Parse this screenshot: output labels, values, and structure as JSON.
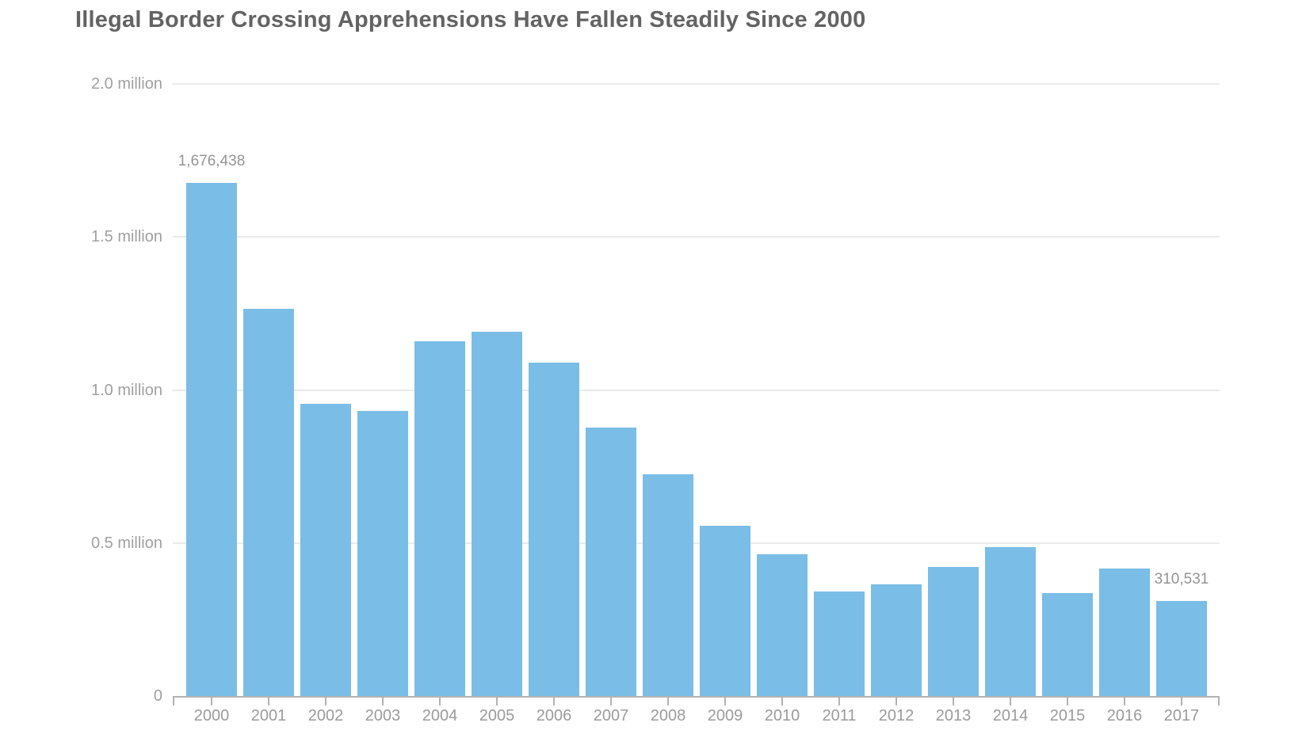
{
  "title": "Illegal Border Crossing Apprehensions Have Fallen Steadily Since 2000",
  "colors": {
    "background": "#ffffff",
    "bar": "#7abde6",
    "title_text": "#636363",
    "axis_tick_text": "#9b9b9b",
    "y_label_text": "#a0a0a0",
    "value_label_text": "#949494",
    "gridline": "#eaeaea",
    "axis_line": "#b3b3b3"
  },
  "chart_data": {
    "type": "bar",
    "title": "Illegal Border Crossing Apprehensions Have Fallen Steadily Since 2000",
    "xlabel": "",
    "ylabel": "",
    "ylim": [
      0,
      2000000
    ],
    "grid": "horizontal-gridlines-on",
    "legend": "none",
    "categories": [
      "2000",
      "2001",
      "2002",
      "2003",
      "2004",
      "2005",
      "2006",
      "2007",
      "2008",
      "2009",
      "2010",
      "2011",
      "2012",
      "2013",
      "2014",
      "2015",
      "2016",
      "2017"
    ],
    "values": [
      1676438,
      1266214,
      955310,
      931557,
      1160395,
      1189075,
      1089092,
      876704,
      723825,
      556041,
      463382,
      340252,
      364768,
      420789,
      486651,
      337117,
      415816,
      310531
    ],
    "yticks": [
      {
        "value": 0,
        "label": "0"
      },
      {
        "value": 500000,
        "label": "0.5 million"
      },
      {
        "value": 1000000,
        "label": "1.0 million"
      },
      {
        "value": 1500000,
        "label": "1.5 million"
      },
      {
        "value": 2000000,
        "label": "2.0 million"
      }
    ],
    "value_annotations": [
      {
        "index": 0,
        "text": "1,676,438"
      },
      {
        "index": 17,
        "text": "310,531"
      }
    ]
  }
}
